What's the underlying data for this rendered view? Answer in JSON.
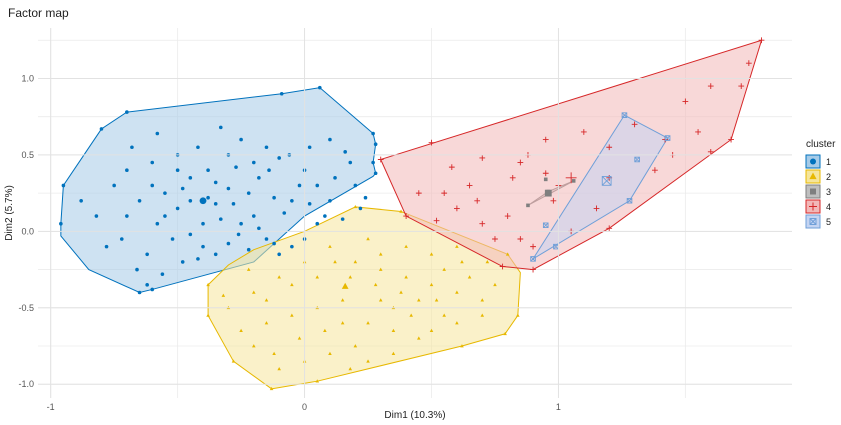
{
  "chart_data": {
    "type": "scatter",
    "title": "Factor map",
    "xlabel": "Dim1 (10.3%)",
    "ylabel": "Dim2 (5.7%)",
    "xlim": [
      -1.05,
      1.92
    ],
    "ylim": [
      -1.09,
      1.33
    ],
    "xticks": [
      -1,
      0,
      1
    ],
    "xtick_labels": [
      "-1",
      "0",
      "1"
    ],
    "yticks": [
      -1.0,
      -0.5,
      0.0,
      0.5,
      1.0
    ],
    "ytick_labels": [
      "-1.0",
      "-0.5",
      "0.0",
      "0.5",
      "1.0"
    ],
    "grid": true,
    "legend": {
      "title": "cluster",
      "position": "right"
    },
    "series": [
      {
        "name": "1",
        "color": "#0072BD",
        "fill": "#A6CBE8",
        "marker": "circle",
        "hull": [
          [
            -0.8,
            0.67
          ],
          [
            -0.7,
            0.78
          ],
          [
            -0.09,
            0.9
          ],
          [
            0.06,
            0.94
          ],
          [
            0.27,
            0.64
          ],
          [
            0.28,
            0.57
          ],
          [
            0.27,
            0.45
          ],
          [
            0.28,
            0.38
          ],
          [
            0.27,
            0.36
          ],
          [
            0.0,
            0.1
          ],
          [
            -0.2,
            -0.2
          ],
          [
            -0.6,
            -0.38
          ],
          [
            -0.65,
            -0.4
          ],
          [
            -0.85,
            -0.25
          ],
          [
            -0.96,
            -0.03
          ],
          [
            -0.96,
            0.05
          ],
          [
            -0.95,
            0.3
          ]
        ],
        "center": [
          -0.4,
          0.2
        ],
        "points": [
          [
            -0.8,
            0.67
          ],
          [
            -0.7,
            0.78
          ],
          [
            -0.09,
            0.9
          ],
          [
            0.06,
            0.94
          ],
          [
            0.27,
            0.64
          ],
          [
            0.28,
            0.57
          ],
          [
            0.27,
            0.45
          ],
          [
            0.28,
            0.38
          ],
          [
            -0.96,
            0.05
          ],
          [
            -0.95,
            0.3
          ],
          [
            -0.65,
            -0.4
          ],
          [
            -0.6,
            -0.38
          ],
          [
            -0.3,
            0.5
          ],
          [
            -0.5,
            0.4
          ],
          [
            -0.45,
            0.2
          ],
          [
            -0.38,
            0.22
          ],
          [
            -0.35,
            0.18
          ],
          [
            -0.2,
            0.1
          ],
          [
            -0.25,
            0.05
          ],
          [
            -0.55,
            0.1
          ],
          [
            -0.6,
            0.3
          ],
          [
            -0.7,
            0.1
          ],
          [
            -0.75,
            0.3
          ],
          [
            -0.68,
            0.55
          ],
          [
            -0.58,
            0.64
          ],
          [
            -0.5,
            0.5
          ],
          [
            -0.42,
            0.55
          ],
          [
            -0.33,
            0.68
          ],
          [
            -0.25,
            0.6
          ],
          [
            -0.15,
            0.55
          ],
          [
            -0.1,
            0.48
          ],
          [
            0.0,
            0.4
          ],
          [
            0.05,
            0.3
          ],
          [
            0.1,
            0.2
          ],
          [
            0.12,
            0.35
          ],
          [
            0.18,
            0.45
          ],
          [
            0.2,
            0.3
          ],
          [
            0.22,
            0.15
          ],
          [
            0.15,
            0.08
          ],
          [
            0.05,
            0.05
          ],
          [
            0.0,
            -0.05
          ],
          [
            -0.05,
            -0.1
          ],
          [
            -0.1,
            -0.15
          ],
          [
            -0.15,
            -0.05
          ],
          [
            -0.22,
            -0.12
          ],
          [
            -0.3,
            -0.08
          ],
          [
            -0.35,
            -0.15
          ],
          [
            -0.4,
            -0.1
          ],
          [
            -0.48,
            -0.2
          ],
          [
            -0.52,
            -0.05
          ],
          [
            -0.62,
            -0.15
          ],
          [
            -0.66,
            -0.25
          ],
          [
            -0.72,
            -0.05
          ],
          [
            -0.78,
            -0.1
          ],
          [
            -0.82,
            0.1
          ],
          [
            -0.88,
            0.2
          ],
          [
            -0.45,
            0.35
          ],
          [
            -0.38,
            0.4
          ],
          [
            -0.3,
            0.28
          ],
          [
            -0.28,
            0.18
          ],
          [
            -0.22,
            0.25
          ],
          [
            -0.18,
            0.35
          ],
          [
            -0.12,
            0.22
          ],
          [
            -0.08,
            0.12
          ],
          [
            -0.05,
            0.2
          ],
          [
            -0.02,
            0.3
          ],
          [
            0.02,
            0.18
          ],
          [
            0.08,
            0.1
          ],
          [
            -0.4,
            0.05
          ],
          [
            -0.45,
            -0.02
          ],
          [
            -0.5,
            0.15
          ],
          [
            -0.55,
            0.25
          ],
          [
            -0.6,
            0.45
          ],
          [
            -0.65,
            0.2
          ],
          [
            -0.7,
            0.4
          ],
          [
            -0.58,
            0.05
          ],
          [
            -0.48,
            0.28
          ],
          [
            -0.35,
            0.32
          ],
          [
            -0.27,
            0.42
          ],
          [
            -0.2,
            0.45
          ],
          [
            -0.14,
            0.4
          ],
          [
            -0.06,
            0.5
          ],
          [
            0.02,
            0.55
          ],
          [
            0.1,
            0.6
          ],
          [
            0.16,
            0.52
          ],
          [
            0.24,
            0.22
          ],
          [
            -0.33,
            0.08
          ],
          [
            -0.26,
            -0.02
          ],
          [
            -0.18,
            0.02
          ],
          [
            -0.12,
            -0.08
          ],
          [
            -0.42,
            -0.18
          ],
          [
            -0.56,
            -0.28
          ],
          [
            -0.62,
            -0.35
          ]
        ]
      },
      {
        "name": "2",
        "color": "#E7B800",
        "fill": "#F5E59C",
        "marker": "triangle",
        "hull": [
          [
            0.2,
            0.16
          ],
          [
            0.38,
            0.13
          ],
          [
            0.8,
            -0.15
          ],
          [
            0.85,
            -0.27
          ],
          [
            0.84,
            -0.55
          ],
          [
            0.79,
            -0.67
          ],
          [
            0.62,
            -0.75
          ],
          [
            0.05,
            -0.98
          ],
          [
            -0.13,
            -1.03
          ],
          [
            -0.28,
            -0.85
          ],
          [
            -0.38,
            -0.55
          ],
          [
            -0.38,
            -0.35
          ],
          [
            -0.3,
            -0.22
          ],
          [
            -0.2,
            -0.12
          ],
          [
            0.0,
            0.0
          ]
        ],
        "center": [
          0.16,
          -0.36
        ],
        "points": [
          [
            0.2,
            0.16
          ],
          [
            0.38,
            0.13
          ],
          [
            0.8,
            -0.15
          ],
          [
            0.84,
            -0.55
          ],
          [
            0.79,
            -0.67
          ],
          [
            0.62,
            -0.75
          ],
          [
            0.05,
            -0.98
          ],
          [
            -0.13,
            -1.03
          ],
          [
            -0.28,
            -0.85
          ],
          [
            -0.38,
            -0.55
          ],
          [
            -0.38,
            -0.35
          ],
          [
            0.1,
            -0.1
          ],
          [
            0.2,
            -0.2
          ],
          [
            0.3,
            -0.25
          ],
          [
            0.4,
            -0.3
          ],
          [
            0.5,
            -0.35
          ],
          [
            0.6,
            -0.4
          ],
          [
            0.7,
            -0.45
          ],
          [
            0.15,
            -0.45
          ],
          [
            0.05,
            -0.5
          ],
          [
            -0.05,
            -0.55
          ],
          [
            -0.15,
            -0.6
          ],
          [
            -0.25,
            -0.65
          ],
          [
            -0.2,
            -0.4
          ],
          [
            -0.1,
            -0.3
          ],
          [
            0.0,
            -0.2
          ],
          [
            0.25,
            -0.6
          ],
          [
            0.35,
            -0.65
          ],
          [
            0.45,
            -0.7
          ],
          [
            0.55,
            -0.55
          ],
          [
            0.65,
            -0.3
          ],
          [
            0.72,
            -0.2
          ],
          [
            0.3,
            -0.45
          ],
          [
            0.2,
            -0.75
          ],
          [
            0.1,
            -0.8
          ],
          [
            0.0,
            -0.85
          ],
          [
            -0.1,
            -0.9
          ],
          [
            -0.2,
            -0.75
          ],
          [
            0.4,
            -0.1
          ],
          [
            0.5,
            -0.15
          ],
          [
            0.6,
            -0.1
          ],
          [
            0.25,
            -0.05
          ],
          [
            0.35,
            -0.5
          ],
          [
            0.45,
            -0.45
          ],
          [
            0.55,
            -0.25
          ],
          [
            0.05,
            -0.3
          ],
          [
            -0.05,
            -0.35
          ],
          [
            -0.15,
            -0.45
          ],
          [
            -0.3,
            -0.5
          ],
          [
            0.15,
            -0.6
          ],
          [
            0.25,
            -0.85
          ],
          [
            0.35,
            -0.8
          ],
          [
            0.5,
            -0.65
          ],
          [
            0.6,
            -0.6
          ],
          [
            0.7,
            -0.55
          ],
          [
            0.75,
            -0.35
          ],
          [
            0.12,
            -0.2
          ],
          [
            0.28,
            -0.35
          ],
          [
            0.38,
            -0.4
          ],
          [
            0.18,
            -0.3
          ],
          [
            0.08,
            -0.65
          ],
          [
            -0.02,
            -0.7
          ],
          [
            -0.12,
            -0.8
          ],
          [
            0.42,
            -0.55
          ],
          [
            0.52,
            -0.45
          ],
          [
            0.62,
            -0.2
          ],
          [
            -0.22,
            -0.25
          ],
          [
            -0.32,
            -0.42
          ],
          [
            0.3,
            -0.15
          ],
          [
            0.18,
            -0.9
          ]
        ]
      },
      {
        "name": "3",
        "color": "#7F7F7F",
        "fill": "#BFBFBF",
        "marker": "square",
        "hull": [
          [
            0.88,
            0.17
          ],
          [
            0.96,
            0.26
          ],
          [
            1.06,
            0.33
          ]
        ],
        "center": [
          0.96,
          0.25
        ],
        "points": [
          [
            0.88,
            0.17
          ],
          [
            0.96,
            0.26
          ],
          [
            1.06,
            0.33
          ],
          [
            0.95,
            0.34
          ]
        ]
      },
      {
        "name": "4",
        "color": "#D62728",
        "fill": "#F2B8B8",
        "marker": "plus",
        "hull": [
          [
            0.3,
            0.47
          ],
          [
            1.8,
            1.25
          ],
          [
            1.68,
            0.6
          ],
          [
            1.2,
            0.02
          ],
          [
            0.9,
            -0.25
          ],
          [
            0.78,
            -0.23
          ],
          [
            0.4,
            0.1
          ]
        ],
        "center": [
          1.05,
          0.35
        ],
        "points": [
          [
            0.3,
            0.47
          ],
          [
            1.8,
            1.25
          ],
          [
            1.68,
            0.6
          ],
          [
            1.2,
            0.02
          ],
          [
            0.9,
            -0.25
          ],
          [
            0.78,
            -0.23
          ],
          [
            0.4,
            0.1
          ],
          [
            0.5,
            0.58
          ],
          [
            0.7,
            0.48
          ],
          [
            0.85,
            0.45
          ],
          [
            0.95,
            0.6
          ],
          [
            1.1,
            0.65
          ],
          [
            1.2,
            0.55
          ],
          [
            1.3,
            0.7
          ],
          [
            1.5,
            0.85
          ],
          [
            1.6,
            0.95
          ],
          [
            1.75,
            1.1
          ],
          [
            1.72,
            0.95
          ],
          [
            1.55,
            0.65
          ],
          [
            1.45,
            0.5
          ],
          [
            1.38,
            0.4
          ],
          [
            1.0,
            0.3
          ],
          [
            0.82,
            0.35
          ],
          [
            0.65,
            0.3
          ],
          [
            0.55,
            0.25
          ],
          [
            0.45,
            0.25
          ],
          [
            0.6,
            0.15
          ],
          [
            0.7,
            0.05
          ],
          [
            0.8,
            0.1
          ],
          [
            0.75,
            -0.05
          ],
          [
            0.9,
            -0.1
          ],
          [
            1.05,
            0.0
          ],
          [
            0.95,
            0.38
          ],
          [
            0.98,
            0.2
          ],
          [
            1.15,
            0.15
          ],
          [
            0.88,
            0.5
          ],
          [
            0.58,
            0.42
          ],
          [
            1.6,
            0.52
          ],
          [
            1.42,
            0.6
          ],
          [
            1.2,
            0.35
          ],
          [
            0.68,
            0.2
          ],
          [
            0.52,
            0.07
          ],
          [
            0.85,
            -0.05
          ]
        ]
      },
      {
        "name": "5",
        "color": "#6F9FD8",
        "fill": "#C4D4F2",
        "marker": "boxx",
        "hull": [
          [
            0.9,
            -0.18
          ],
          [
            1.26,
            0.76
          ],
          [
            1.43,
            0.61
          ],
          [
            1.28,
            0.2
          ]
        ],
        "center": [
          1.19,
          0.33
        ],
        "points": [
          [
            0.9,
            -0.18
          ],
          [
            1.26,
            0.76
          ],
          [
            1.43,
            0.61
          ],
          [
            1.28,
            0.2
          ],
          [
            0.95,
            0.04
          ],
          [
            1.31,
            0.47
          ],
          [
            0.99,
            -0.1
          ]
        ]
      }
    ]
  }
}
